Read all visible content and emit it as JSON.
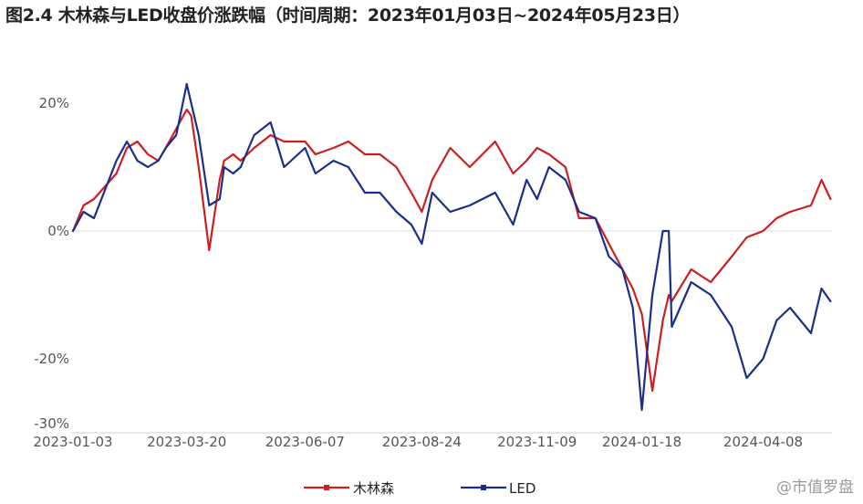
{
  "title": "图2.4 木林森与LED收盘价涨跌幅（时间周期：2023年01月03日~2024年05月23日）",
  "watermark": "@市值罗盘",
  "chart_data": {
    "type": "line",
    "title": "图2.4 木林森与LED收盘价涨跌幅（时间周期：2023年01月03日~2024年05月23日）",
    "xlabel": "",
    "ylabel": "",
    "x_tick_labels": [
      "2023-01-03",
      "2023-03-20",
      "2023-06-07",
      "2023-08-24",
      "2023-11-09",
      "2024-01-18",
      "2024-04-08"
    ],
    "y_tick_labels": [
      "20%",
      "0%",
      "-20%",
      "-30%"
    ],
    "y_ticks": [
      20,
      0,
      -20,
      -30
    ],
    "ylim": [
      -30,
      25
    ],
    "grid": false,
    "zero_line": true,
    "legend_position": "bottom-center",
    "series": [
      {
        "name": "木林森",
        "color": "#cc1f1f",
        "x": [
          "2023-01-03",
          "2023-01-10",
          "2023-01-17",
          "2023-02-01",
          "2023-02-08",
          "2023-02-15",
          "2023-02-22",
          "2023-03-01",
          "2023-03-06",
          "2023-03-13",
          "2023-03-20",
          "2023-03-23",
          "2023-03-28",
          "2023-04-04",
          "2023-04-11",
          "2023-04-14",
          "2023-04-20",
          "2023-04-25",
          "2023-05-04",
          "2023-05-15",
          "2023-05-24",
          "2023-06-07",
          "2023-06-14",
          "2023-06-26",
          "2023-07-06",
          "2023-07-17",
          "2023-07-27",
          "2023-08-07",
          "2023-08-17",
          "2023-08-24",
          "2023-08-31",
          "2023-09-12",
          "2023-09-25",
          "2023-10-12",
          "2023-10-24",
          "2023-11-02",
          "2023-11-09",
          "2023-11-17",
          "2023-11-28",
          "2023-12-07",
          "2023-12-18",
          "2023-12-27",
          "2024-01-05",
          "2024-01-12",
          "2024-01-18",
          "2024-01-25",
          "2024-02-01",
          "2024-02-05",
          "2024-02-07",
          "2024-02-20",
          "2024-03-04",
          "2024-03-18",
          "2024-03-28",
          "2024-04-08",
          "2024-04-17",
          "2024-04-26",
          "2024-05-10",
          "2024-05-17",
          "2024-05-23"
        ],
        "y": [
          0,
          4,
          5,
          9,
          13,
          14,
          12,
          11,
          13,
          16,
          19,
          18,
          10,
          -3,
          8,
          11,
          12,
          11,
          13,
          15,
          14,
          14,
          12,
          13,
          14,
          12,
          12,
          10,
          6,
          3,
          8,
          13,
          10,
          14,
          9,
          11,
          13,
          12,
          10,
          2,
          2,
          -2,
          -6,
          -9,
          -13,
          -25,
          -14,
          -10,
          -11,
          -6,
          -8,
          -4,
          -1,
          0,
          2,
          3,
          4,
          8,
          5
        ]
      },
      {
        "name": "LED",
        "color": "#1a2f8c",
        "x": [
          "2023-01-03",
          "2023-01-10",
          "2023-01-17",
          "2023-02-01",
          "2023-02-08",
          "2023-02-15",
          "2023-02-22",
          "2023-03-01",
          "2023-03-06",
          "2023-03-13",
          "2023-03-20",
          "2023-03-23",
          "2023-03-28",
          "2023-04-04",
          "2023-04-11",
          "2023-04-14",
          "2023-04-20",
          "2023-04-25",
          "2023-05-04",
          "2023-05-15",
          "2023-05-24",
          "2023-06-07",
          "2023-06-14",
          "2023-06-26",
          "2023-07-06",
          "2023-07-17",
          "2023-07-27",
          "2023-08-07",
          "2023-08-17",
          "2023-08-24",
          "2023-08-31",
          "2023-09-12",
          "2023-09-25",
          "2023-10-12",
          "2023-10-24",
          "2023-11-02",
          "2023-11-09",
          "2023-11-17",
          "2023-11-28",
          "2023-12-07",
          "2023-12-18",
          "2023-12-27",
          "2024-01-05",
          "2024-01-12",
          "2024-01-18",
          "2024-01-25",
          "2024-02-01",
          "2024-02-05",
          "2024-02-07",
          "2024-02-20",
          "2024-03-04",
          "2024-03-18",
          "2024-03-28",
          "2024-04-08",
          "2024-04-17",
          "2024-04-26",
          "2024-05-10",
          "2024-05-17",
          "2024-05-23"
        ],
        "y": [
          0,
          3,
          2,
          11,
          14,
          11,
          10,
          11,
          13,
          15,
          23,
          20,
          15,
          4,
          5,
          10,
          9,
          10,
          15,
          17,
          10,
          13,
          9,
          11,
          10,
          6,
          6,
          3,
          1,
          -2,
          6,
          3,
          4,
          6,
          1,
          8,
          5,
          10,
          8,
          3,
          2,
          -4,
          -6,
          -12,
          -28,
          -10,
          0,
          0,
          -15,
          -8,
          -10,
          -15,
          -23,
          -20,
          -14,
          -12,
          -16,
          -9,
          -11
        ]
      }
    ]
  }
}
